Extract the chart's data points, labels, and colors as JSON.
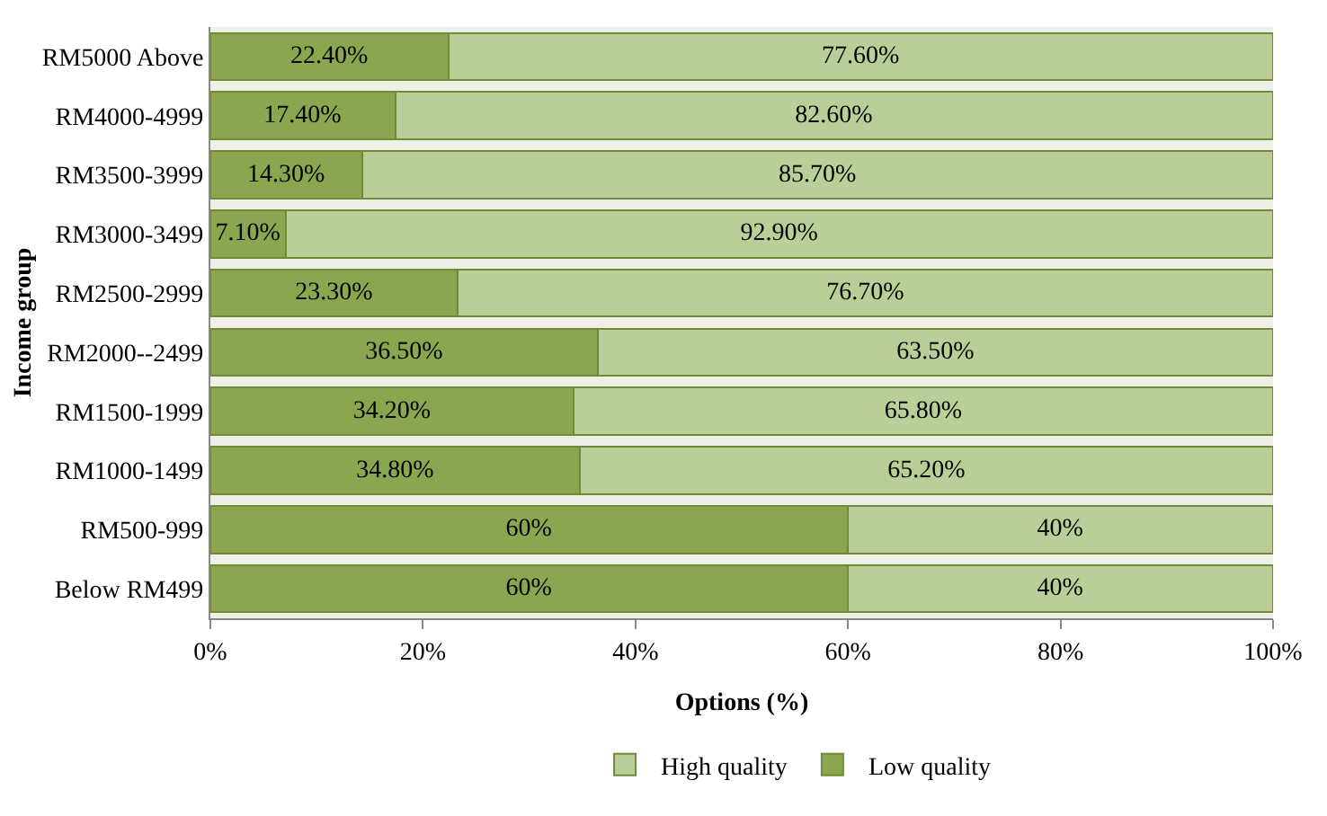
{
  "chart_data": {
    "type": "bar",
    "orientation": "horizontal",
    "stacked": true,
    "xlabel": "Options (%)",
    "ylabel": "Income group",
    "categories": [
      "RM5000 Above",
      "RM4000-4999",
      "RM3500-3999",
      "RM3000-3499",
      "RM2500-2999",
      "RM2000--2499",
      "RM1500-1999",
      "RM1000-1499",
      "RM500-999",
      "Below RM499"
    ],
    "series": [
      {
        "name": "Low quality",
        "color": "#8aa64e",
        "values": [
          22.4,
          17.4,
          14.3,
          7.1,
          23.3,
          36.5,
          34.2,
          34.8,
          60,
          60
        ],
        "value_labels": [
          "22.40%",
          "17.40%",
          "14.30%",
          "7.10%",
          "23.30%",
          "36.50%",
          "34.20%",
          "34.80%",
          "60%",
          "60%"
        ]
      },
      {
        "name": "High quality",
        "color": "#b9cf97",
        "values": [
          77.6,
          82.6,
          85.7,
          92.9,
          76.7,
          63.5,
          65.8,
          65.2,
          40,
          40
        ],
        "value_labels": [
          "77.60%",
          "82.60%",
          "85.70%",
          "92.90%",
          "76.70%",
          "63.50%",
          "65.80%",
          "65.20%",
          "40%",
          "40%"
        ]
      }
    ],
    "xlim": [
      0,
      100
    ],
    "xticks": [
      {
        "value": 0,
        "label": "0%"
      },
      {
        "value": 20,
        "label": "20%"
      },
      {
        "value": 40,
        "label": "40%"
      },
      {
        "value": 60,
        "label": "60%"
      },
      {
        "value": 80,
        "label": "80%"
      },
      {
        "value": 100,
        "label": "100%"
      }
    ],
    "grid": false,
    "legend": "bottom"
  }
}
